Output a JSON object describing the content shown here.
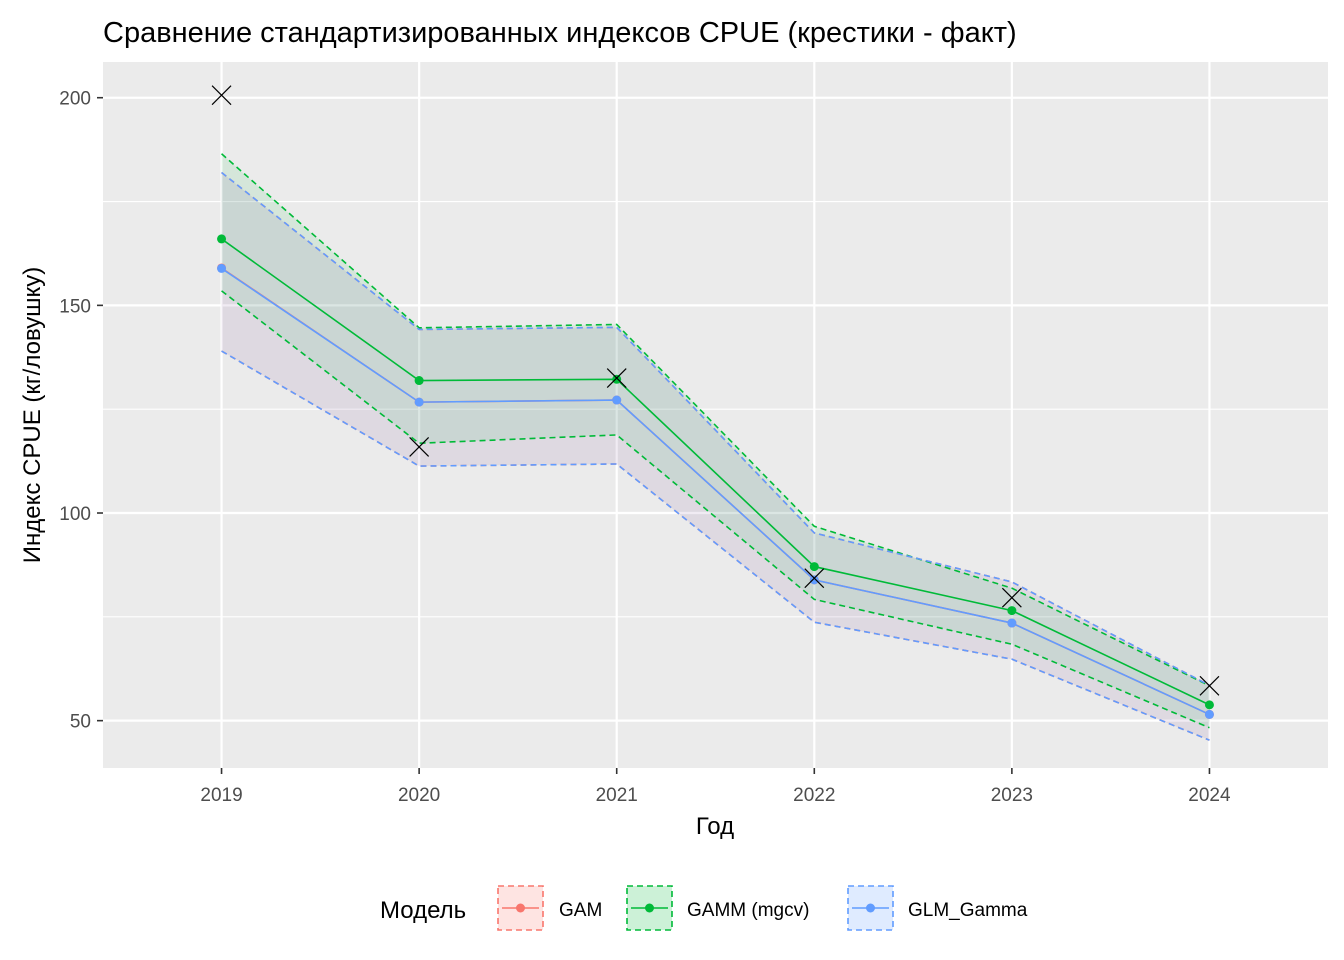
{
  "chart_data": {
    "type": "line",
    "title": "Сравнение стандартизированных индексов CPUE (крестики - факт)",
    "xlabel": "Год",
    "ylabel": "Индекс CPUE (кг/ловушку)",
    "categories": [
      "2019",
      "2020",
      "2021",
      "2022",
      "2023",
      "2024"
    ],
    "x": [
      2019,
      2020,
      2021,
      2022,
      2023,
      2024
    ],
    "xlim": [
      2018.4,
      2024.6
    ],
    "ylim": [
      38.6,
      208.6
    ],
    "yticks": [
      50,
      100,
      150,
      200
    ],
    "ytick_labels": [
      "50",
      "100",
      "150",
      "200"
    ],
    "grid": true,
    "legend": {
      "title": "Модель",
      "position": "bottom"
    },
    "series": [
      {
        "name": "GAM",
        "color": "#F8766D",
        "values": [
          159,
          126.7,
          127.2,
          83.9,
          73.5,
          51.5
        ],
        "lower": [
          139,
          111.3,
          111.8,
          73.7,
          64.8,
          45.3
        ],
        "upper": [
          182,
          144.2,
          144.7,
          95.2,
          83.4,
          58.5
        ]
      },
      {
        "name": "GAMM (mgcv)",
        "color": "#00BA38",
        "values": [
          166,
          131.9,
          132.2,
          87.1,
          76.5,
          53.8
        ],
        "lower": [
          153.5,
          116.8,
          118.8,
          79.2,
          68.4,
          48.3
        ],
        "upper": [
          186.5,
          144.6,
          145.4,
          96.8,
          81.9,
          58.4
        ]
      },
      {
        "name": "GLM_Gamma",
        "color": "#619CFF",
        "values": [
          158.9,
          126.7,
          127.2,
          83.9,
          73.5,
          51.5
        ],
        "lower": [
          139,
          111.3,
          111.8,
          73.7,
          64.8,
          45.3
        ],
        "upper": [
          182,
          144.2,
          144.7,
          95.2,
          83.4,
          58.5
        ]
      }
    ],
    "actual": {
      "marker": "cross",
      "values": [
        200.6,
        115.9,
        132.5,
        84.3,
        79.6,
        58.4
      ]
    }
  }
}
